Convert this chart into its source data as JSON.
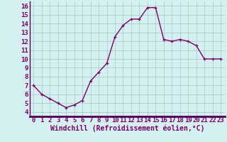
{
  "x": [
    0,
    1,
    2,
    3,
    4,
    5,
    6,
    7,
    8,
    9,
    10,
    11,
    12,
    13,
    14,
    15,
    16,
    17,
    18,
    19,
    20,
    21,
    22,
    23
  ],
  "y": [
    7.0,
    6.0,
    5.5,
    5.0,
    4.5,
    4.8,
    5.3,
    7.5,
    8.5,
    9.5,
    12.5,
    13.8,
    14.5,
    14.5,
    15.8,
    15.8,
    12.2,
    12.0,
    12.2,
    12.0,
    11.5,
    10.0,
    10.0,
    10.0
  ],
  "line_color": "#7b006b",
  "marker": "+",
  "marker_size": 3,
  "bg_color": "#d5f0f0",
  "grid_color": "#aacfcf",
  "xlabel": "Windchill (Refroidissement éolien,°C)",
  "xlim": [
    -0.5,
    23.5
  ],
  "ylim": [
    3.5,
    16.5
  ],
  "yticks": [
    4,
    5,
    6,
    7,
    8,
    9,
    10,
    11,
    12,
    13,
    14,
    15,
    16
  ],
  "xticks": [
    0,
    1,
    2,
    3,
    4,
    5,
    6,
    7,
    8,
    9,
    10,
    11,
    12,
    13,
    14,
    15,
    16,
    17,
    18,
    19,
    20,
    21,
    22,
    23
  ],
  "tick_fontsize": 6.5,
  "xlabel_fontsize": 7,
  "linewidth": 1.0,
  "separator_color": "#5b005b"
}
